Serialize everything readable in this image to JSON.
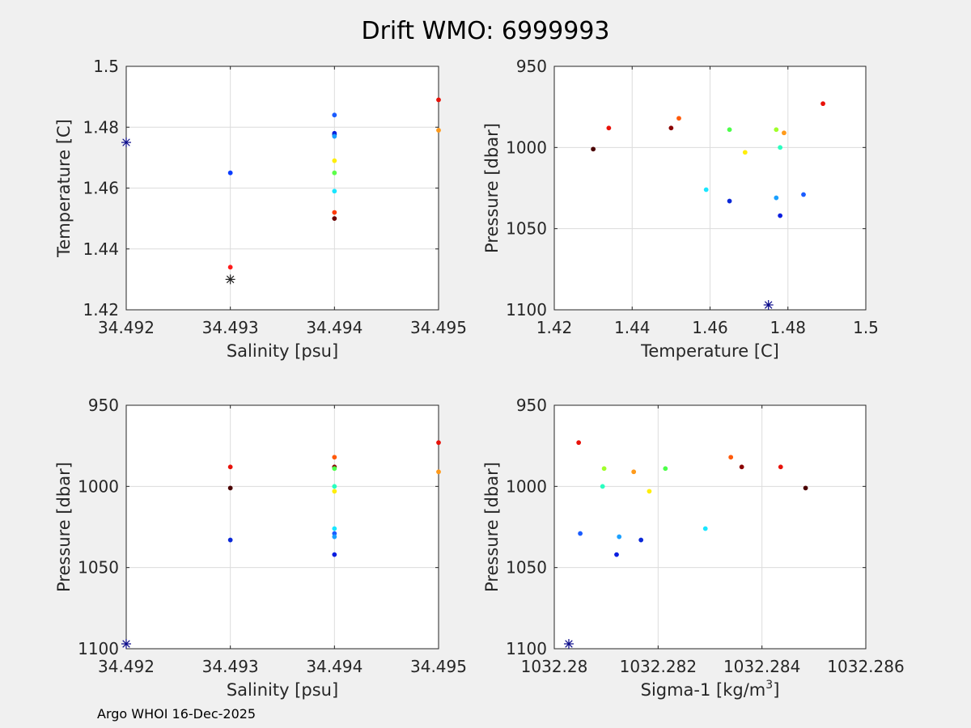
{
  "figure": {
    "title": "Drift WMO: 6999993",
    "footer": "Argo WHOI 16-Dec-2025"
  },
  "chart_data": [
    {
      "id": "ts",
      "type": "scatter",
      "xlabel": "Salinity [psu]",
      "ylabel": "Temperature [C]",
      "xlim": [
        34.492,
        34.495
      ],
      "ylim": [
        1.42,
        1.5
      ],
      "reverse_y": false,
      "xticks": [
        34.492,
        34.493,
        34.494,
        34.495
      ],
      "xtick_labels": [
        "34.492",
        "34.493",
        "34.494",
        "34.495"
      ],
      "yticks": [
        1.42,
        1.44,
        1.46,
        1.48,
        1.5
      ],
      "ytick_labels": [
        "1.42",
        "1.44",
        "1.46",
        "1.48",
        "1.5"
      ],
      "points": [
        {
          "x": 34.495,
          "y": 1.489,
          "color": "#e8120a"
        },
        {
          "x": 34.495,
          "y": 1.479,
          "color": "#ff9a1a"
        },
        {
          "x": 34.494,
          "y": 1.484,
          "color": "#1a5cff"
        },
        {
          "x": 34.494,
          "y": 1.478,
          "color": "#0a1ee0"
        },
        {
          "x": 34.494,
          "y": 1.4775,
          "color": "#0a28d8"
        },
        {
          "x": 34.494,
          "y": 1.477,
          "color": "#1aa0ff"
        },
        {
          "x": 34.494,
          "y": 1.469,
          "color": "#ffee0a"
        },
        {
          "x": 34.494,
          "y": 1.465,
          "color": "#5cff4a"
        },
        {
          "x": 34.494,
          "y": 1.459,
          "color": "#1ae6ff"
        },
        {
          "x": 34.494,
          "y": 1.452,
          "color": "#ff3a0a"
        },
        {
          "x": 34.494,
          "y": 1.45,
          "color": "#6b0000"
        },
        {
          "x": 34.493,
          "y": 1.465,
          "color": "#0a3cff"
        },
        {
          "x": 34.493,
          "y": 1.434,
          "color": "#ff1a1a"
        }
      ],
      "markers": [
        {
          "x": 34.492,
          "y": 1.475,
          "color": "#0a0a8a"
        },
        {
          "x": 34.493,
          "y": 1.43,
          "color": "#222222"
        }
      ]
    },
    {
      "id": "tp",
      "type": "scatter",
      "xlabel": "Temperature [C]",
      "ylabel": "Pressure [dbar]",
      "xlim": [
        1.42,
        1.5
      ],
      "ylim": [
        950,
        1100
      ],
      "reverse_y": true,
      "xticks": [
        1.42,
        1.44,
        1.46,
        1.48,
        1.5
      ],
      "xtick_labels": [
        "1.42",
        "1.44",
        "1.46",
        "1.48",
        "1.5"
      ],
      "yticks": [
        950,
        1000,
        1050,
        1100
      ],
      "ytick_labels": [
        "950",
        "1000",
        "1050",
        "1100"
      ],
      "points": [
        {
          "x": 1.489,
          "y": 973,
          "color": "#e8120a"
        },
        {
          "x": 1.452,
          "y": 982,
          "color": "#ff5a0a"
        },
        {
          "x": 1.434,
          "y": 988,
          "color": "#e8120a"
        },
        {
          "x": 1.45,
          "y": 988,
          "color": "#8a0000"
        },
        {
          "x": 1.465,
          "y": 989,
          "color": "#4cff4a"
        },
        {
          "x": 1.477,
          "y": 989,
          "color": "#a0ff2a"
        },
        {
          "x": 1.479,
          "y": 991,
          "color": "#ff9a1a"
        },
        {
          "x": 1.43,
          "y": 1001,
          "color": "#4a0000"
        },
        {
          "x": 1.478,
          "y": 1000,
          "color": "#2affc0"
        },
        {
          "x": 1.469,
          "y": 1003,
          "color": "#ffee0a"
        },
        {
          "x": 1.459,
          "y": 1026,
          "color": "#1ae6ff"
        },
        {
          "x": 1.484,
          "y": 1029,
          "color": "#1a5cff"
        },
        {
          "x": 1.477,
          "y": 1031,
          "color": "#1aa0ff"
        },
        {
          "x": 1.465,
          "y": 1033,
          "color": "#0a28d8"
        },
        {
          "x": 1.478,
          "y": 1042,
          "color": "#0a1ee0"
        }
      ],
      "markers": [
        {
          "x": 1.475,
          "y": 1097,
          "color": "#0a0a8a"
        }
      ]
    },
    {
      "id": "sp",
      "type": "scatter",
      "xlabel": "Salinity [psu]",
      "ylabel": "Pressure [dbar]",
      "xlim": [
        34.492,
        34.495
      ],
      "ylim": [
        950,
        1100
      ],
      "reverse_y": true,
      "xticks": [
        34.492,
        34.493,
        34.494,
        34.495
      ],
      "xtick_labels": [
        "34.492",
        "34.493",
        "34.494",
        "34.495"
      ],
      "yticks": [
        950,
        1000,
        1050,
        1100
      ],
      "ytick_labels": [
        "950",
        "1000",
        "1050",
        "1100"
      ],
      "points": [
        {
          "x": 34.495,
          "y": 973,
          "color": "#e8120a"
        },
        {
          "x": 34.495,
          "y": 991,
          "color": "#ff9a1a"
        },
        {
          "x": 34.494,
          "y": 982,
          "color": "#ff5a0a"
        },
        {
          "x": 34.494,
          "y": 988,
          "color": "#8a0000"
        },
        {
          "x": 34.494,
          "y": 989,
          "color": "#4cff4a"
        },
        {
          "x": 34.494,
          "y": 1000,
          "color": "#2affc0"
        },
        {
          "x": 34.494,
          "y": 1003,
          "color": "#ffee0a"
        },
        {
          "x": 34.494,
          "y": 1026,
          "color": "#1ae6ff"
        },
        {
          "x": 34.494,
          "y": 1029,
          "color": "#1a5cff"
        },
        {
          "x": 34.494,
          "y": 1031,
          "color": "#1aa0ff"
        },
        {
          "x": 34.494,
          "y": 1042,
          "color": "#0a1ee0"
        },
        {
          "x": 34.493,
          "y": 988,
          "color": "#e8120a"
        },
        {
          "x": 34.493,
          "y": 1001,
          "color": "#4a0000"
        },
        {
          "x": 34.493,
          "y": 1033,
          "color": "#0a28d8"
        }
      ],
      "markers": [
        {
          "x": 34.492,
          "y": 1097,
          "color": "#0a0a8a"
        }
      ]
    },
    {
      "id": "sigp",
      "type": "scatter",
      "xlabel": "Sigma-1 [kg/m",
      "xlabel_sup": "3",
      "xlabel_end": "]",
      "ylabel": "Pressure [dbar]",
      "xlim": [
        1032.28,
        1032.286
      ],
      "ylim": [
        950,
        1100
      ],
      "reverse_y": true,
      "xticks": [
        1032.28,
        1032.282,
        1032.284,
        1032.286
      ],
      "xtick_labels": [
        "1032.28",
        "1032.282",
        "1032.284",
        "1032.286"
      ],
      "yticks": [
        950,
        1000,
        1050,
        1100
      ],
      "ytick_labels": [
        "950",
        "1000",
        "1050",
        "1100"
      ],
      "points": [
        {
          "x": 1032.28047,
          "y": 973,
          "color": "#e8120a"
        },
        {
          "x": 1032.2834,
          "y": 982,
          "color": "#ff5a0a"
        },
        {
          "x": 1032.28361,
          "y": 988,
          "color": "#8a0000"
        },
        {
          "x": 1032.28436,
          "y": 988,
          "color": "#e8120a"
        },
        {
          "x": 1032.28484,
          "y": 1001,
          "color": "#4a0000"
        },
        {
          "x": 1032.28096,
          "y": 989,
          "color": "#a0ff2a"
        },
        {
          "x": 1032.28214,
          "y": 989,
          "color": "#4cff4a"
        },
        {
          "x": 1032.28153,
          "y": 991,
          "color": "#ff9a1a"
        },
        {
          "x": 1032.28093,
          "y": 1000,
          "color": "#2affc0"
        },
        {
          "x": 1032.28183,
          "y": 1003,
          "color": "#ffee0a"
        },
        {
          "x": 1032.2805,
          "y": 1029,
          "color": "#1a5cff"
        },
        {
          "x": 1032.28125,
          "y": 1031,
          "color": "#1aa0ff"
        },
        {
          "x": 1032.28167,
          "y": 1033,
          "color": "#0a28d8"
        },
        {
          "x": 1032.2812,
          "y": 1042,
          "color": "#0a1ee0"
        },
        {
          "x": 1032.28291,
          "y": 1026,
          "color": "#1ae6ff"
        }
      ],
      "markers": [
        {
          "x": 1032.28028,
          "y": 1097,
          "color": "#0a0a8a"
        }
      ]
    }
  ]
}
